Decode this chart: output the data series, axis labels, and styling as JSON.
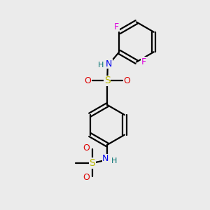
{
  "background_color": "#ebebeb",
  "bond_color": "#000000",
  "S_color": "#b8b800",
  "O_color": "#dd0000",
  "N_color": "#0000ee",
  "H_color": "#007070",
  "F_color": "#dd00dd",
  "figsize": [
    3.0,
    3.0
  ],
  "dpi": 100,
  "xlim": [
    0,
    10
  ],
  "ylim": [
    0,
    10
  ]
}
